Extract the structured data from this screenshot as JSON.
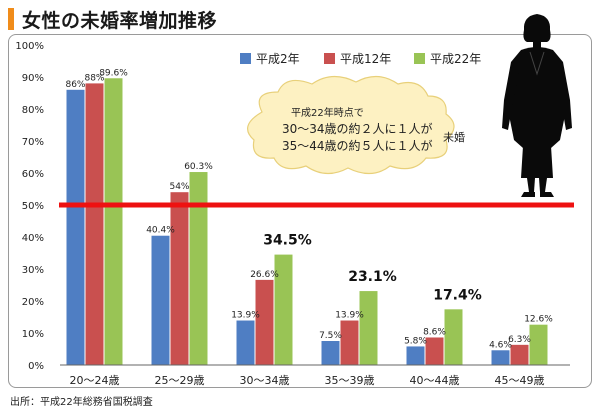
{
  "header": {
    "title": "女性の未婚率増加推移"
  },
  "source": "出所：平成22年総務省国税調査",
  "callout": {
    "line1": "平成22年時点で",
    "line2": "30～34歳の約２人に１人が",
    "line3": "35～44歳の約５人に１人が",
    "tag": "未婚"
  },
  "colors": {
    "s0": "#4f7ec3",
    "s1": "#c9504f",
    "s2": "#99c455",
    "refline": "#ee1111",
    "accent": "#f08c1a"
  },
  "chart_data": {
    "type": "bar",
    "title": "女性の未婚率増加推移",
    "categories": [
      "20～24歳",
      "25～29歳",
      "30～34歳",
      "35～39歳",
      "40～44歳",
      "45～49歳"
    ],
    "series": [
      {
        "name": "平成2年",
        "values": [
          86,
          40.4,
          13.9,
          7.5,
          5.8,
          4.6
        ],
        "labels": [
          "86%",
          "40.4%",
          "13.9%",
          "7.5%",
          "5.8%",
          "4.6%"
        ]
      },
      {
        "name": "平成12年",
        "values": [
          88,
          54,
          26.6,
          13.9,
          8.6,
          6.3
        ],
        "labels": [
          "88%",
          "54%",
          "26.6%",
          "13.9%",
          "8.6%",
          "6.3%"
        ]
      },
      {
        "name": "平成22年",
        "values": [
          89.6,
          60.3,
          34.5,
          23.1,
          17.4,
          12.6
        ],
        "labels": [
          "89.6%",
          "60.3%",
          "34.5%",
          "23.1%",
          "17.4%",
          "12.6%"
        ]
      }
    ],
    "emphasized_labels": [
      "34.5%",
      "23.1%",
      "17.4%"
    ],
    "yticks": [
      "0%",
      "10%",
      "20%",
      "30%",
      "40%",
      "50%",
      "60%",
      "70%",
      "80%",
      "90%",
      "100%"
    ],
    "ylim": [
      0,
      100
    ],
    "reference_line": 50,
    "legend_position": "top",
    "grid": false
  }
}
